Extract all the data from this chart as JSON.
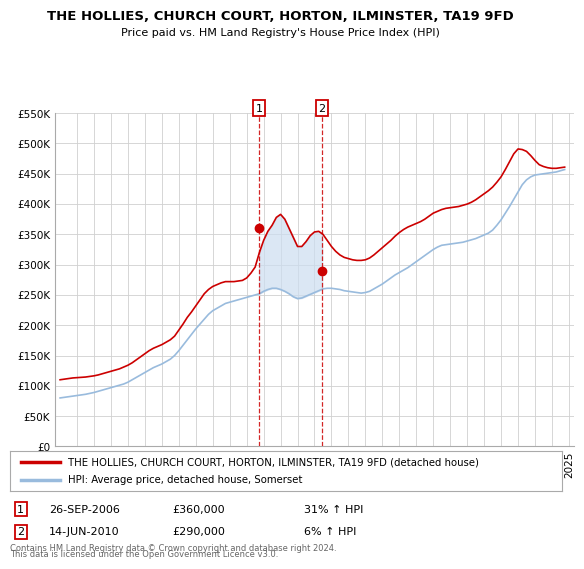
{
  "title": "THE HOLLIES, CHURCH COURT, HORTON, ILMINSTER, TA19 9FD",
  "subtitle": "Price paid vs. HM Land Registry's House Price Index (HPI)",
  "background_color": "#ffffff",
  "plot_bg_color": "#ffffff",
  "grid_color": "#d0d0d0",
  "sale1_date_num": 2006.74,
  "sale1_price": 360000,
  "sale2_date_num": 2010.45,
  "sale2_price": 290000,
  "hpi_color": "#99bbdd",
  "property_color": "#cc0000",
  "shade_color": "#ccddf0",
  "legend_label_property": "THE HOLLIES, CHURCH COURT, HORTON, ILMINSTER, TA19 9FD (detached house)",
  "legend_label_hpi": "HPI: Average price, detached house, Somerset",
  "footer_line1": "Contains HM Land Registry data © Crown copyright and database right 2024.",
  "footer_line2": "This data is licensed under the Open Government Licence v3.0.",
  "sale1_info_date": "26-SEP-2006",
  "sale1_info_price": "£360,000",
  "sale1_info_hpi": "31% ↑ HPI",
  "sale2_info_date": "14-JUN-2010",
  "sale2_info_price": "£290,000",
  "sale2_info_hpi": "6% ↑ HPI",
  "ylim": [
    0,
    550000
  ],
  "xlim": [
    1994.7,
    2025.3
  ],
  "hpi_years": [
    1995.0,
    1995.25,
    1995.5,
    1995.75,
    1996.0,
    1996.25,
    1996.5,
    1996.75,
    1997.0,
    1997.25,
    1997.5,
    1997.75,
    1998.0,
    1998.25,
    1998.5,
    1998.75,
    1999.0,
    1999.25,
    1999.5,
    1999.75,
    2000.0,
    2000.25,
    2000.5,
    2000.75,
    2001.0,
    2001.25,
    2001.5,
    2001.75,
    2002.0,
    2002.25,
    2002.5,
    2002.75,
    2003.0,
    2003.25,
    2003.5,
    2003.75,
    2004.0,
    2004.25,
    2004.5,
    2004.75,
    2005.0,
    2005.25,
    2005.5,
    2005.75,
    2006.0,
    2006.25,
    2006.5,
    2006.75,
    2007.0,
    2007.25,
    2007.5,
    2007.75,
    2008.0,
    2008.25,
    2008.5,
    2008.75,
    2009.0,
    2009.25,
    2009.5,
    2009.75,
    2010.0,
    2010.25,
    2010.5,
    2010.75,
    2011.0,
    2011.25,
    2011.5,
    2011.75,
    2012.0,
    2012.25,
    2012.5,
    2012.75,
    2013.0,
    2013.25,
    2013.5,
    2013.75,
    2014.0,
    2014.25,
    2014.5,
    2014.75,
    2015.0,
    2015.25,
    2015.5,
    2015.75,
    2016.0,
    2016.25,
    2016.5,
    2016.75,
    2017.0,
    2017.25,
    2017.5,
    2017.75,
    2018.0,
    2018.25,
    2018.5,
    2018.75,
    2019.0,
    2019.25,
    2019.5,
    2019.75,
    2020.0,
    2020.25,
    2020.5,
    2020.75,
    2021.0,
    2021.25,
    2021.5,
    2021.75,
    2022.0,
    2022.25,
    2022.5,
    2022.75,
    2023.0,
    2023.25,
    2023.5,
    2023.75,
    2024.0,
    2024.25,
    2024.5,
    2024.75
  ],
  "hpi_values": [
    80000,
    81000,
    82000,
    83000,
    84000,
    85000,
    86000,
    87500,
    89000,
    91000,
    93000,
    95000,
    97000,
    99000,
    101000,
    103000,
    106000,
    110000,
    114000,
    118000,
    122000,
    126000,
    130000,
    133000,
    136000,
    140000,
    144000,
    150000,
    158000,
    167000,
    176000,
    185000,
    194000,
    202000,
    210000,
    218000,
    224000,
    228000,
    232000,
    236000,
    238000,
    240000,
    242000,
    244000,
    246000,
    248000,
    250000,
    252000,
    256000,
    259000,
    261000,
    261000,
    259000,
    256000,
    252000,
    247000,
    244000,
    245000,
    248000,
    251000,
    254000,
    257000,
    260000,
    261000,
    261000,
    260000,
    259000,
    257000,
    256000,
    255000,
    254000,
    253000,
    254000,
    256000,
    260000,
    264000,
    268000,
    273000,
    278000,
    283000,
    287000,
    291000,
    295000,
    300000,
    305000,
    310000,
    315000,
    320000,
    325000,
    329000,
    332000,
    333000,
    334000,
    335000,
    336000,
    337000,
    339000,
    341000,
    343000,
    346000,
    349000,
    352000,
    357000,
    365000,
    374000,
    385000,
    396000,
    408000,
    420000,
    432000,
    440000,
    445000,
    448000,
    449000,
    450000,
    451000,
    452000,
    453000,
    455000,
    457000
  ],
  "prop_values": [
    110000,
    111000,
    112000,
    113000,
    113500,
    114000,
    114500,
    115500,
    116500,
    118000,
    120000,
    122000,
    124000,
    126000,
    128000,
    131000,
    134000,
    138000,
    143000,
    148000,
    153000,
    158000,
    162000,
    165000,
    168000,
    172000,
    176000,
    182000,
    192000,
    202000,
    213000,
    222000,
    232000,
    242000,
    252000,
    259000,
    264000,
    267000,
    270000,
    272000,
    272000,
    272000,
    273000,
    274000,
    278000,
    286000,
    296000,
    320000,
    340000,
    355000,
    365000,
    378000,
    383000,
    375000,
    360000,
    345000,
    330000,
    330000,
    338000,
    348000,
    354000,
    355000,
    350000,
    340000,
    330000,
    322000,
    316000,
    312000,
    310000,
    308000,
    307000,
    307000,
    308000,
    311000,
    316000,
    322000,
    328000,
    334000,
    340000,
    347000,
    353000,
    358000,
    362000,
    365000,
    368000,
    371000,
    375000,
    380000,
    385000,
    388000,
    391000,
    393000,
    394000,
    395000,
    396000,
    398000,
    400000,
    403000,
    407000,
    412000,
    417000,
    422000,
    428000,
    436000,
    445000,
    457000,
    470000,
    483000,
    491000,
    490000,
    487000,
    480000,
    472000,
    465000,
    462000,
    460000,
    459000,
    459000,
    460000,
    461000
  ]
}
